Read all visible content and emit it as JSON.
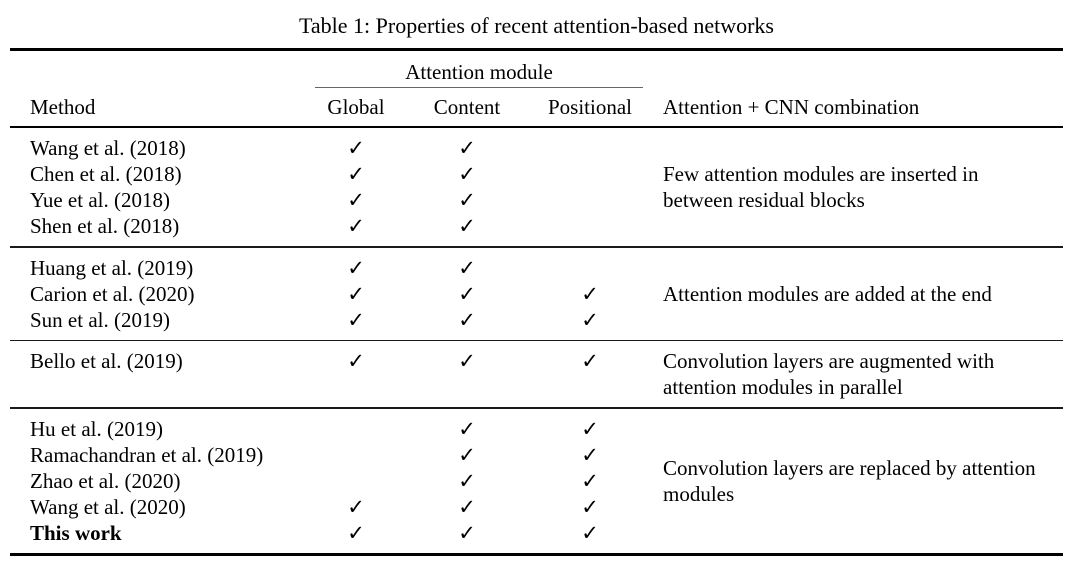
{
  "caption": "Table 1: Properties of recent attention-based networks",
  "table": {
    "span_header": "Attention module",
    "columns": {
      "method": "Method",
      "global": "Global",
      "content": "Content",
      "positional": "Positional",
      "combination": "Attention + CNN combination"
    },
    "check_glyph": "✓",
    "groups": [
      {
        "comment": "Few attention modules are inserted in between residual blocks",
        "rows": [
          {
            "method": "Wang et al. (2018)",
            "global": "✓",
            "content": "✓",
            "positional": ""
          },
          {
            "method": "Chen et al. (2018)",
            "global": "✓",
            "content": "✓",
            "positional": ""
          },
          {
            "method": "Yue et al. (2018)",
            "global": "✓",
            "content": "✓",
            "positional": ""
          },
          {
            "method": "Shen et al. (2018)",
            "global": "✓",
            "content": "✓",
            "positional": ""
          }
        ]
      },
      {
        "comment": "Attention modules are added at the end",
        "rows": [
          {
            "method": "Huang et al. (2019)",
            "global": "✓",
            "content": "✓",
            "positional": ""
          },
          {
            "method": "Carion et al. (2020)",
            "global": "✓",
            "content": "✓",
            "positional": "✓"
          },
          {
            "method": "Sun et al. (2019)",
            "global": "✓",
            "content": "✓",
            "positional": "✓"
          }
        ]
      },
      {
        "comment": "Convolution layers are augmented with attention modules in parallel",
        "rows": [
          {
            "method": "Bello et al. (2019)",
            "global": "✓",
            "content": "✓",
            "positional": "✓"
          }
        ]
      },
      {
        "comment": "Convolution layers are replaced by attention modules",
        "rows": [
          {
            "method": "Hu et al. (2019)",
            "global": "",
            "content": "✓",
            "positional": "✓"
          },
          {
            "method": "Ramachandran et al. (2019)",
            "global": "",
            "content": "✓",
            "positional": "✓"
          },
          {
            "method": "Zhao et al. (2020)",
            "global": "",
            "content": "✓",
            "positional": "✓"
          },
          {
            "method": "Wang et al. (2020)",
            "global": "✓",
            "content": "✓",
            "positional": "✓"
          },
          {
            "method": "This work",
            "global": "✓",
            "content": "✓",
            "positional": "✓"
          }
        ]
      }
    ]
  },
  "colors": {
    "text": "#000000",
    "background": "#ffffff",
    "rule": "#000000"
  }
}
